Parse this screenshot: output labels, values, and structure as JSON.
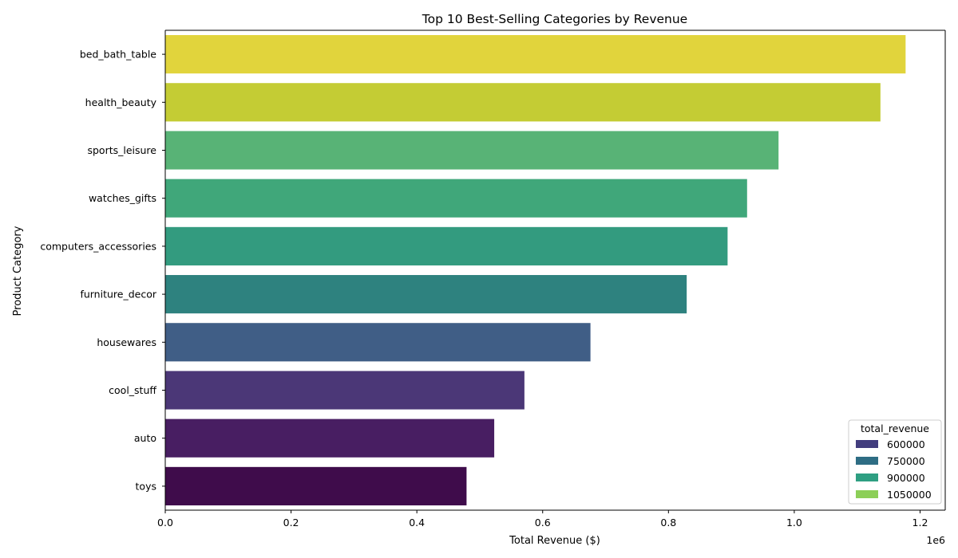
{
  "chart_data": {
    "type": "bar",
    "orientation": "horizontal",
    "title": "Top 10 Best-Selling Categories by Revenue",
    "xlabel": "Total Revenue ($)",
    "ylabel": "Product Category",
    "x_offset_label": "1e6",
    "xlim": [
      0,
      1.24
    ],
    "x_ticks": [
      {
        "value": 0.0,
        "label": "0.0"
      },
      {
        "value": 0.2,
        "label": "0.2"
      },
      {
        "value": 0.4,
        "label": "0.4"
      },
      {
        "value": 0.6,
        "label": "0.6"
      },
      {
        "value": 0.8,
        "label": "0.8"
      },
      {
        "value": 1.0,
        "label": "1.0"
      },
      {
        "value": 1.2,
        "label": "1.2"
      }
    ],
    "grid": false,
    "categories": [
      "bed_bath_table",
      "health_beauty",
      "sports_leisure",
      "watches_gifts",
      "computers_accessories",
      "furniture_decor",
      "housewares",
      "cool_stuff",
      "auto",
      "toys"
    ],
    "values": [
      1.177,
      1.137,
      0.975,
      0.925,
      0.894,
      0.829,
      0.676,
      0.571,
      0.523,
      0.479
    ],
    "bar_colors": [
      "#e1d43c",
      "#c4cc34",
      "#58b376",
      "#40a77a",
      "#339b7f",
      "#2e827f",
      "#405e86",
      "#4b3777",
      "#481e62",
      "#3f0c4b"
    ],
    "legend": {
      "title": "total_revenue",
      "placement": "lower-right",
      "entries": [
        {
          "label": "600000",
          "color": "#423d7e"
        },
        {
          "label": "750000",
          "color": "#2e6d84"
        },
        {
          "label": "900000",
          "color": "#2e9f82"
        },
        {
          "label": "1050000",
          "color": "#8ccf58"
        }
      ]
    }
  }
}
